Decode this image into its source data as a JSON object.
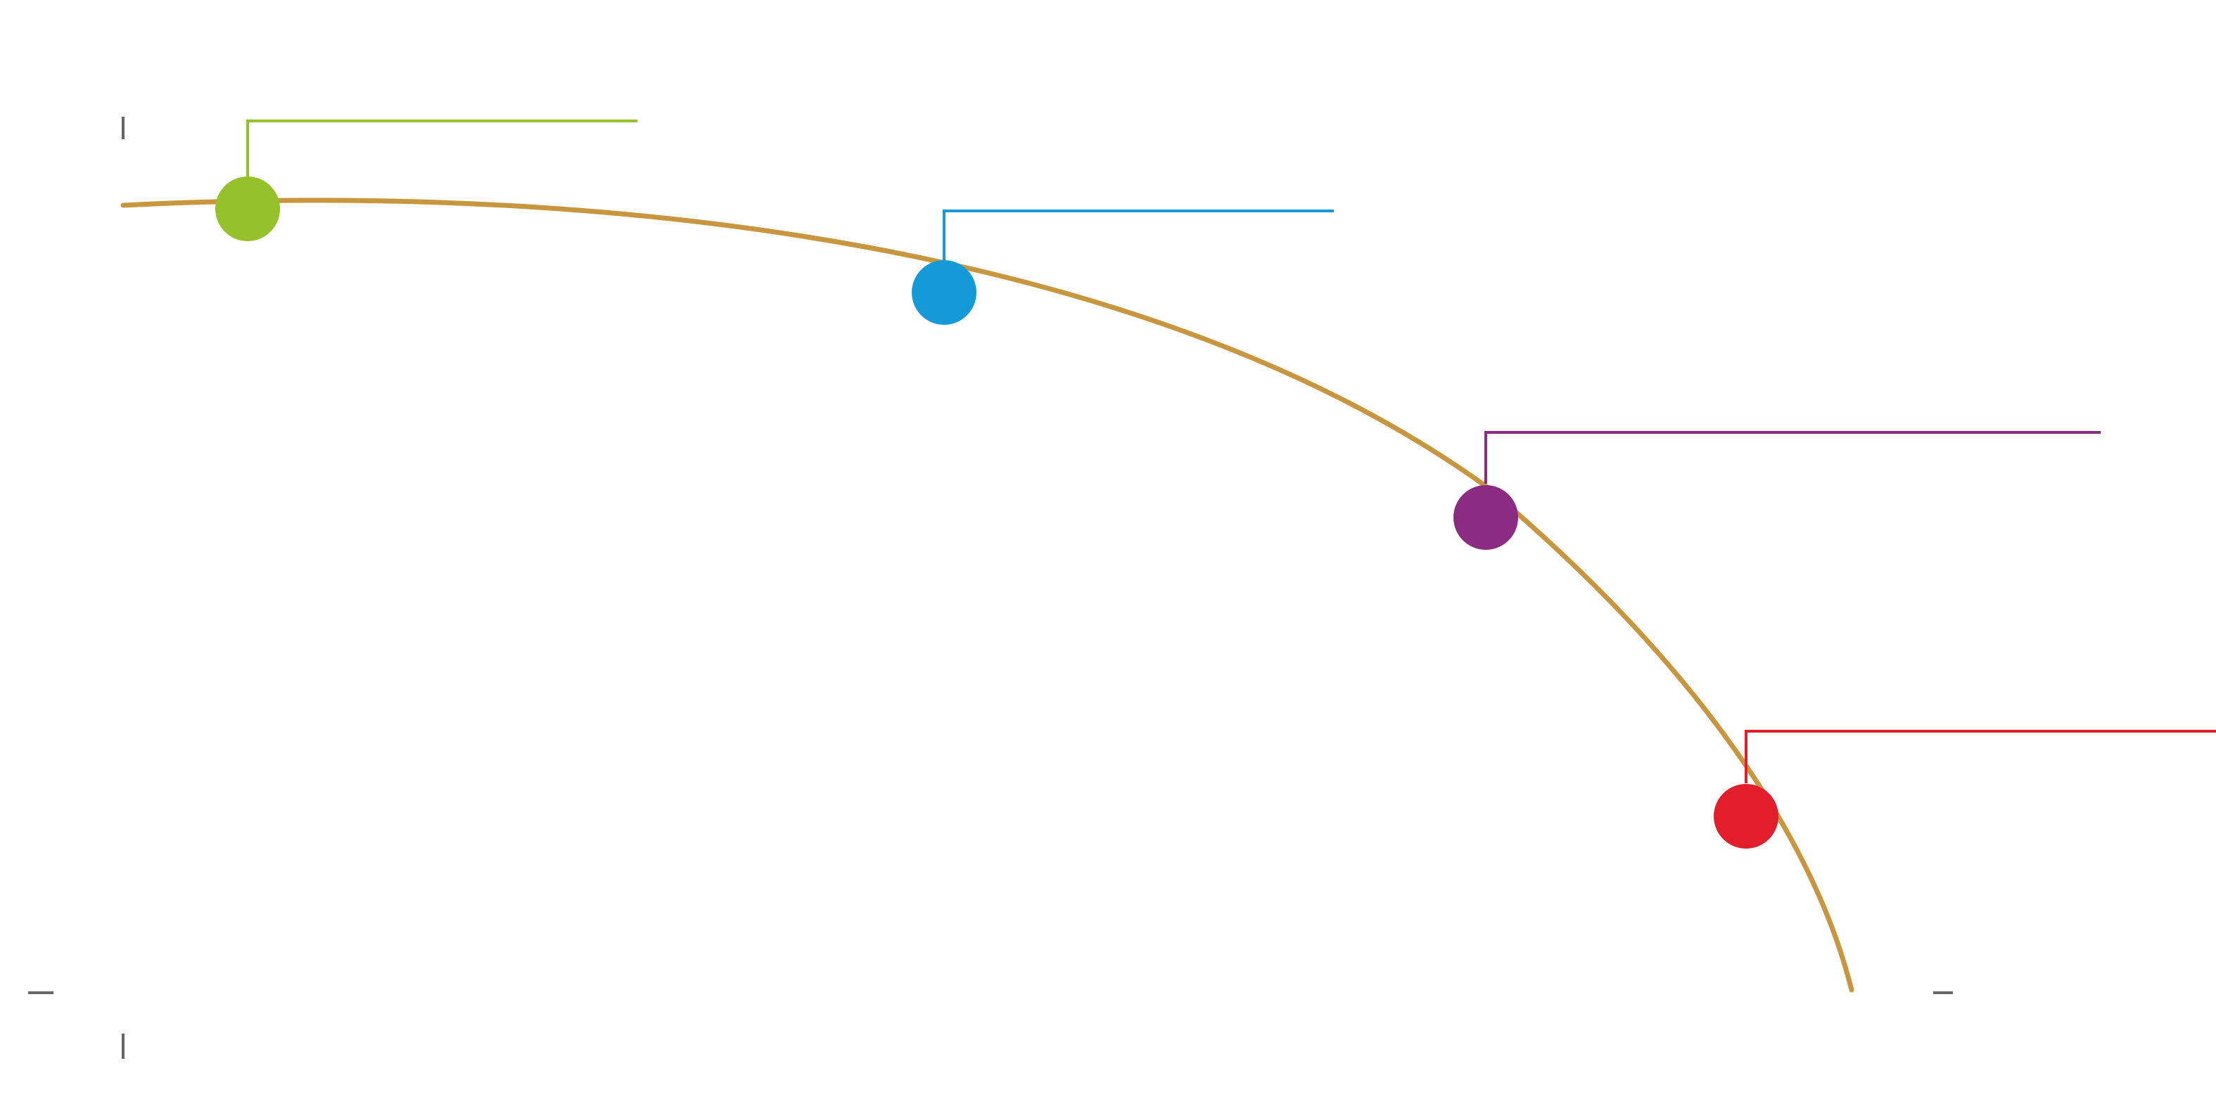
{
  "colors": {
    "background": "#ffffff",
    "curve": "#c8963e",
    "axis_tick": "#666666",
    "point_1": "#95c12b",
    "point_2": "#149bd7",
    "point_3": "#8b2b82",
    "point_4": "#e31e2c"
  },
  "points": [
    {
      "id": "point-1",
      "color_key": "point_1",
      "label": ""
    },
    {
      "id": "point-2",
      "color_key": "point_2",
      "label": ""
    },
    {
      "id": "point-3",
      "color_key": "point_3",
      "label": ""
    },
    {
      "id": "point-4",
      "color_key": "point_4",
      "label": ""
    }
  ]
}
